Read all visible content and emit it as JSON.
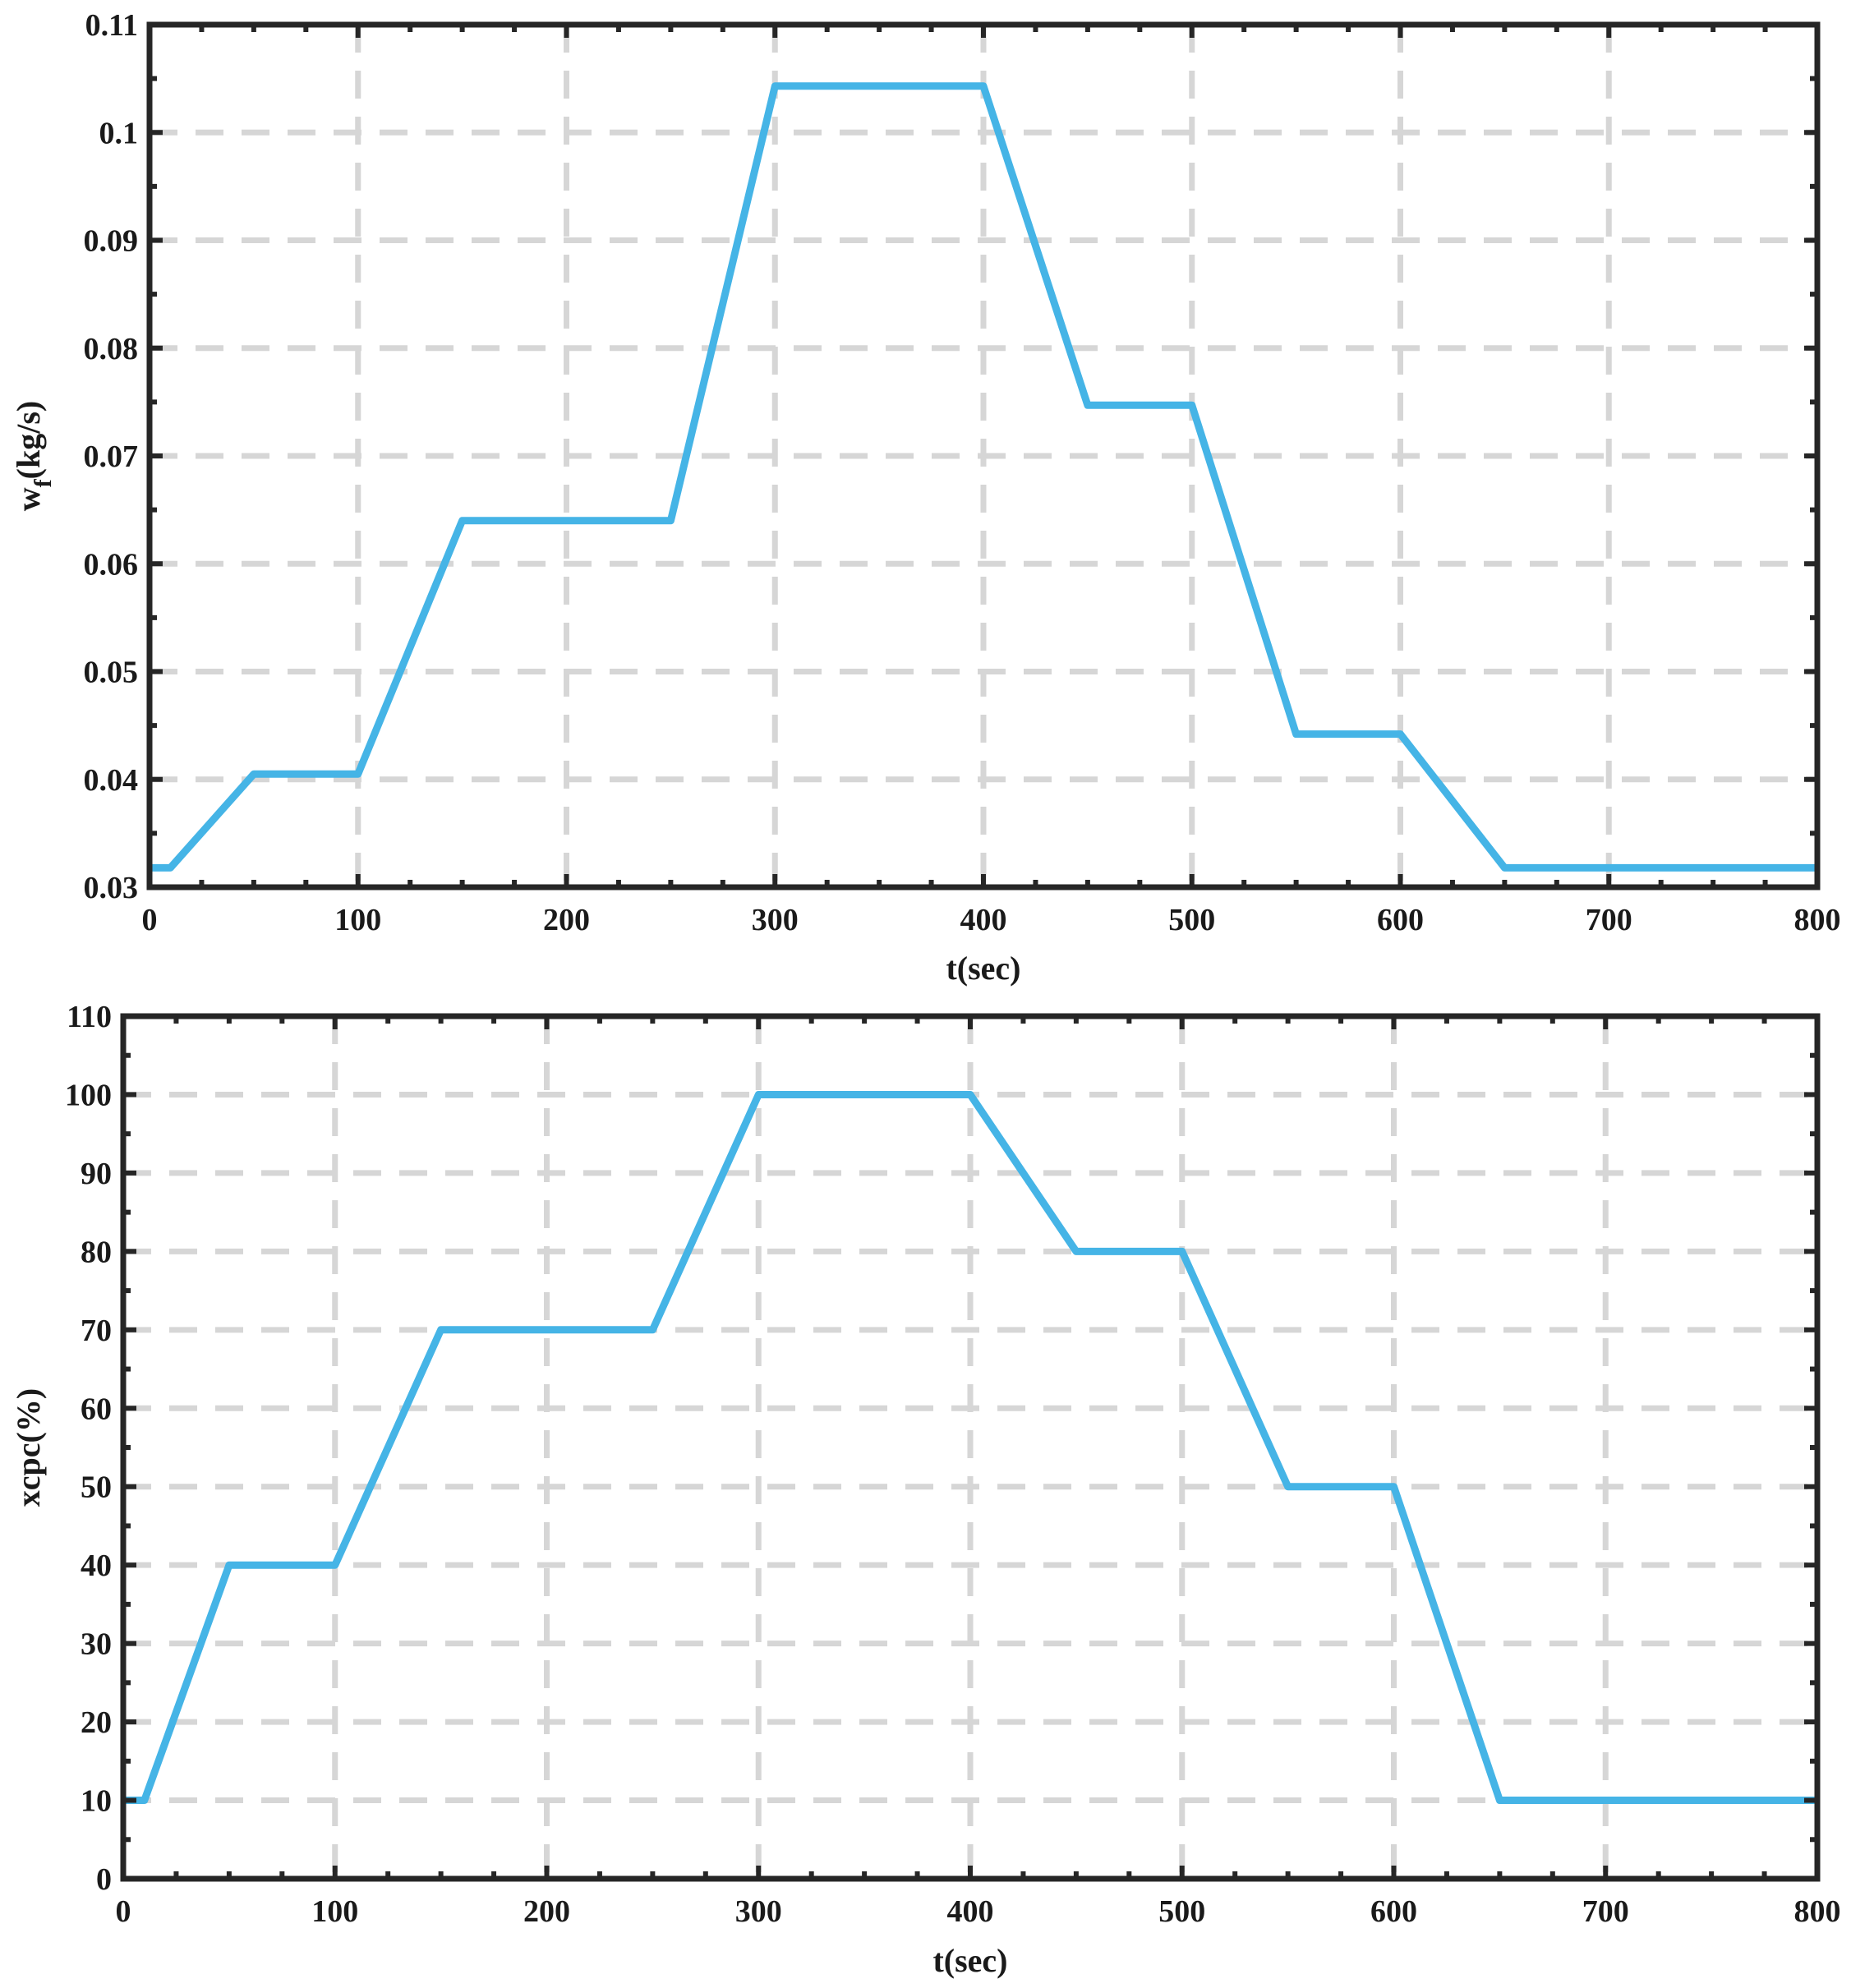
{
  "colors": {
    "series": "#45b4e6",
    "grid": "#d6d6d6",
    "axes": "#262626"
  },
  "chart_data": [
    {
      "type": "line",
      "xlabel": "t(sec)",
      "ylabel_main": "w",
      "ylabel_sub": "f",
      "ylabel_unit": "(kg/s)",
      "xlim": [
        0,
        800
      ],
      "ylim": [
        0.03,
        0.11
      ],
      "xticks": [
        0,
        100,
        200,
        300,
        400,
        500,
        600,
        700,
        800
      ],
      "xtick_labels": [
        "0",
        "100",
        "200",
        "300",
        "400",
        "500",
        "600",
        "700",
        "800"
      ],
      "yticks": [
        0.03,
        0.04,
        0.05,
        0.06,
        0.07,
        0.08,
        0.09,
        0.1,
        0.11
      ],
      "ytick_labels": [
        "0.03",
        "0.04",
        "0.05",
        "0.06",
        "0.07",
        "0.08",
        "0.09",
        "0.1",
        "0.11"
      ],
      "grid": true,
      "series": [
        {
          "x": [
            0,
            10,
            50,
            100,
            150,
            250,
            300,
            400,
            450,
            500,
            550,
            600,
            650,
            800
          ],
          "y": [
            0.0318,
            0.0318,
            0.0405,
            0.0405,
            0.064,
            0.064,
            0.1043,
            0.1043,
            0.0747,
            0.0747,
            0.0442,
            0.0442,
            0.0318,
            0.0318
          ]
        }
      ]
    },
    {
      "type": "line",
      "xlabel": "t(sec)",
      "ylabel_main": "xcpc(%)",
      "ylabel_sub": "",
      "ylabel_unit": "",
      "xlim": [
        0,
        800
      ],
      "ylim": [
        0,
        110
      ],
      "xticks": [
        0,
        100,
        200,
        300,
        400,
        500,
        600,
        700,
        800
      ],
      "xtick_labels": [
        "0",
        "100",
        "200",
        "300",
        "400",
        "500",
        "600",
        "700",
        "800"
      ],
      "yticks": [
        0,
        10,
        20,
        30,
        40,
        50,
        60,
        70,
        80,
        90,
        100,
        110
      ],
      "ytick_labels": [
        "0",
        "10",
        "20",
        "30",
        "40",
        "50",
        "60",
        "70",
        "80",
        "90",
        "100",
        "110"
      ],
      "grid": true,
      "series": [
        {
          "x": [
            0,
            10,
            50,
            100,
            150,
            250,
            300,
            400,
            450,
            500,
            550,
            600,
            650,
            800
          ],
          "y": [
            10,
            10,
            40,
            40,
            70,
            70,
            100,
            100,
            80,
            80,
            50,
            50,
            10,
            10
          ]
        }
      ]
    }
  ]
}
